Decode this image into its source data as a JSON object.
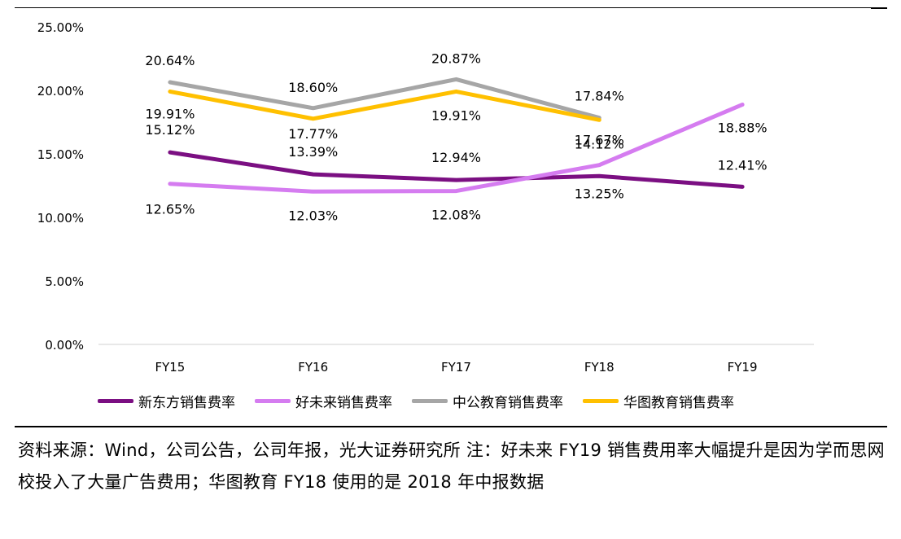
{
  "chart_data": {
    "type": "line",
    "categories": [
      "FY15",
      "FY16",
      "FY17",
      "FY18",
      "FY19"
    ],
    "ylim": [
      0,
      25
    ],
    "yticks": [
      "0.00%",
      "5.00%",
      "10.00%",
      "15.00%",
      "20.00%",
      "25.00%"
    ],
    "ytick_values": [
      0,
      5,
      10,
      15,
      20,
      25
    ],
    "grid": false,
    "legend": "bottom",
    "series": [
      {
        "name": "新东方销售费率",
        "color": "#7B0F82",
        "values": [
          15.12,
          13.39,
          12.94,
          13.25,
          12.41
        ],
        "labels": [
          "15.12%",
          "13.39%",
          "12.94%",
          "13.25%",
          "12.41%"
        ]
      },
      {
        "name": "好未来销售费率",
        "color": "#D57CF0",
        "values": [
          12.65,
          12.03,
          12.08,
          14.12,
          18.88
        ],
        "labels": [
          "12.65%",
          "12.03%",
          "12.08%",
          "14.12%",
          "18.88%"
        ]
      },
      {
        "name": "中公教育销售费率",
        "color": "#A6A6A6",
        "values": [
          20.64,
          18.6,
          20.87,
          17.84,
          null
        ],
        "labels": [
          "20.64%",
          "18.60%",
          "20.87%",
          "17.84%",
          null
        ]
      },
      {
        "name": "华图教育销售费率",
        "color": "#FFC000",
        "values": [
          19.91,
          17.77,
          19.91,
          17.67,
          null
        ],
        "labels": [
          "19.91%",
          "17.77%",
          "19.91%",
          "17.67%",
          null
        ]
      }
    ]
  },
  "note": {
    "text": "资料来源：Wind，公司公告，公司年报，光大证券研究所 注：好未来 FY19 销售费用率大幅提升是因为学而思网校投入了大量广告费用；华图教育 FY18 使用的是 2018 年中报数据"
  }
}
